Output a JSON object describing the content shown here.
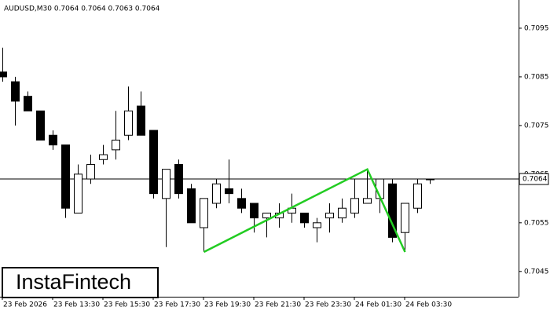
{
  "chart_data": {
    "type": "candlestick",
    "header": "AUDUSD,M30  0.7064 0.7064 0.7063 0.7064",
    "watermark": "InstaFintech",
    "categories": [
      "23 Feb 2026",
      null,
      null,
      null,
      "23 Feb 13:30",
      null,
      null,
      null,
      "23 Feb 15:30",
      null,
      null,
      null,
      "23 Feb 17:30",
      null,
      null,
      null,
      "23 Feb 19:30",
      null,
      null,
      null,
      "23 Feb 21:30",
      null,
      null,
      null,
      "23 Feb 23:30",
      null,
      null,
      null,
      "24 Feb 01:30",
      null,
      null,
      null,
      "24 Feb 03:30",
      null,
      null
    ],
    "open": [
      0.7086,
      0.7084,
      0.7081,
      0.7078,
      0.7073,
      0.7071,
      0.7057,
      0.7064,
      0.7068,
      0.707,
      0.7073,
      0.7079,
      0.7074,
      0.706,
      0.7067,
      0.7062,
      0.7054,
      0.7059,
      0.7062,
      0.706,
      0.7059,
      0.7056,
      0.7056,
      0.7057,
      0.7057,
      0.7054,
      0.7056,
      0.7056,
      0.7057,
      0.7059,
      0.706,
      0.7063,
      0.7053,
      0.7058,
      0.7064
    ],
    "high": [
      0.7091,
      0.7085,
      0.7082,
      0.7078,
      0.7074,
      0.7071,
      0.7067,
      0.7069,
      0.7071,
      0.7078,
      0.7083,
      0.7082,
      0.7074,
      0.7066,
      0.7068,
      0.7063,
      0.706,
      0.7064,
      0.7068,
      0.7062,
      0.7059,
      0.7057,
      0.7059,
      0.7061,
      0.7057,
      0.7056,
      0.7059,
      0.706,
      0.7064,
      0.7066,
      0.7064,
      0.7064,
      0.7059,
      0.7064,
      0.7064
    ],
    "low": [
      0.7084,
      0.7075,
      0.7078,
      0.7072,
      0.707,
      0.7056,
      0.7057,
      0.7063,
      0.7067,
      0.7068,
      0.7072,
      0.7073,
      0.706,
      0.705,
      0.706,
      0.7055,
      0.7049,
      0.7058,
      0.7059,
      0.7057,
      0.7053,
      0.7052,
      0.7054,
      0.7055,
      0.7054,
      0.7051,
      0.7053,
      0.7055,
      0.7056,
      0.7059,
      0.7057,
      0.7051,
      0.7049,
      0.7057,
      0.7063
    ],
    "close": [
      0.7085,
      0.708,
      0.7078,
      0.7072,
      0.7071,
      0.7058,
      0.7065,
      0.7067,
      0.7069,
      0.7072,
      0.7078,
      0.7073,
      0.7061,
      0.7066,
      0.7061,
      0.7055,
      0.706,
      0.7063,
      0.7061,
      0.7058,
      0.7056,
      0.7057,
      0.7057,
      0.7058,
      0.7055,
      0.7055,
      0.7057,
      0.7058,
      0.706,
      0.706,
      0.7064,
      0.7052,
      0.7059,
      0.7063,
      0.7064
    ],
    "ylim": [
      0.70398,
      0.71008
    ],
    "yticks": [
      0.7045,
      0.7055,
      0.7065,
      0.7075,
      0.7085,
      0.7095
    ],
    "current_price": 0.7064,
    "pattern": {
      "color": "#22cc22",
      "index": [
        16,
        29,
        32
      ],
      "values": [
        0.7049,
        0.7066,
        0.7049
      ]
    }
  }
}
